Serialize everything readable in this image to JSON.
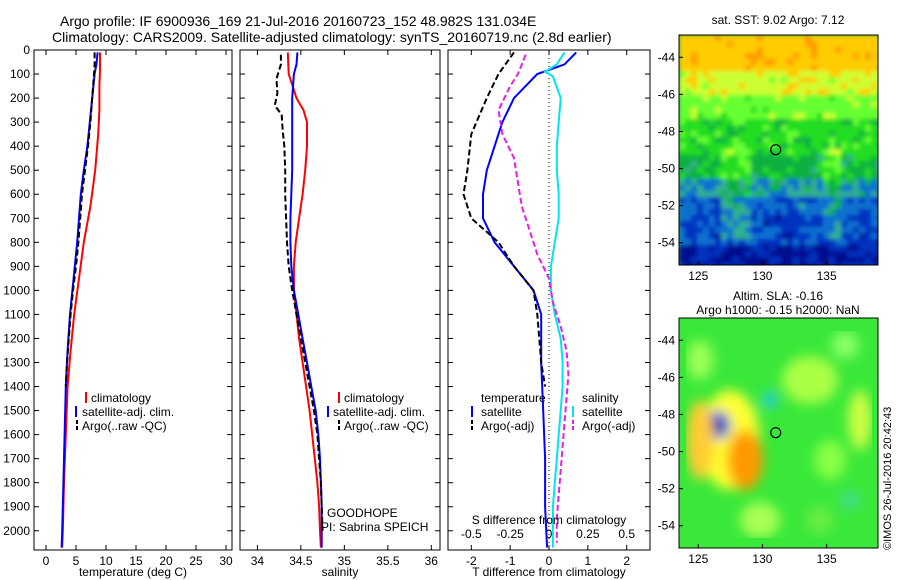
{
  "title_line1": "Argo profile: IF 6900936_169 21-Jul-2016 20160723_152 48.982S 131.034E",
  "title_line2": "Climatology: CARS2009. Satellite-adjusted climatology: synTS_20160719.nc (2.8d earlier)",
  "colors": {
    "climatology": "#ff0000",
    "satellite": "#0000ff",
    "argo": "#000000",
    "sat_salinity": "#00e5ee",
    "argo_salinity_adj": "#e61ee6"
  },
  "chart_data": [
    {
      "type": "line",
      "xlabel": "temperature (deg C)",
      "xlim": [
        -2,
        31
      ],
      "xticks": [
        0,
        5,
        10,
        15,
        20,
        25,
        30
      ],
      "ylim": [
        2080,
        0
      ],
      "yticks": [
        0,
        100,
        200,
        300,
        400,
        500,
        600,
        700,
        800,
        900,
        1000,
        1100,
        1200,
        1300,
        1400,
        1500,
        1600,
        1700,
        1800,
        1900,
        2000
      ],
      "legend": [
        "climatology",
        "satellite-adj. clim.",
        "Argo(..raw -QC)"
      ],
      "series": [
        {
          "name": "climatology",
          "style": "solid",
          "color": "#ff0000",
          "points": [
            [
              9.0,
              10
            ],
            [
              9.0,
              80
            ],
            [
              8.9,
              150
            ],
            [
              8.9,
              250
            ],
            [
              8.7,
              350
            ],
            [
              8.2,
              500
            ],
            [
              7.4,
              650
            ],
            [
              6.3,
              800
            ],
            [
              5.5,
              950
            ],
            [
              4.7,
              1100
            ],
            [
              4.1,
              1250
            ],
            [
              3.6,
              1400
            ],
            [
              3.3,
              1600
            ],
            [
              3.0,
              1800
            ],
            [
              2.8,
              2000
            ],
            [
              2.7,
              2070
            ]
          ]
        },
        {
          "name": "satellite-adj. clim.",
          "style": "solid",
          "color": "#0000ff",
          "points": [
            [
              8.6,
              10
            ],
            [
              8.4,
              60
            ],
            [
              8.1,
              100
            ],
            [
              7.7,
              200
            ],
            [
              7.3,
              300
            ],
            [
              6.9,
              400
            ],
            [
              6.3,
              500
            ],
            [
              5.8,
              600
            ],
            [
              5.5,
              700
            ],
            [
              5.2,
              800
            ],
            [
              4.8,
              900
            ],
            [
              4.4,
              1000
            ],
            [
              4.0,
              1100
            ],
            [
              3.6,
              1250
            ],
            [
              3.3,
              1400
            ],
            [
              3.1,
              1600
            ],
            [
              2.9,
              1800
            ],
            [
              2.7,
              2000
            ],
            [
              2.6,
              2070
            ]
          ]
        },
        {
          "name": "Argo(..raw -QC)",
          "style": "dashed",
          "color": "#000000",
          "points": [
            [
              8.1,
              10
            ],
            [
              8.1,
              60
            ],
            [
              8.0,
              100
            ],
            [
              7.7,
              200
            ],
            [
              7.4,
              300
            ],
            [
              7.0,
              400
            ],
            [
              6.5,
              500
            ],
            [
              6.0,
              600
            ],
            [
              5.7,
              700
            ],
            [
              5.4,
              800
            ],
            [
              5.0,
              900
            ],
            [
              4.5,
              1000
            ],
            [
              4.1,
              1100
            ],
            [
              3.8,
              1200
            ],
            [
              3.5,
              1300
            ],
            [
              3.3,
              1400
            ]
          ]
        }
      ]
    },
    {
      "type": "line",
      "xlabel": "salinity",
      "xlim": [
        33.8,
        36.1
      ],
      "xticks": [
        34,
        34.5,
        35,
        35.5,
        36
      ],
      "ylim": [
        2080,
        0
      ],
      "legend": [
        "climatology",
        "satellite-adj. clim.",
        "Argo(..raw -QC)"
      ],
      "annotation": [
        "GOODHOPE",
        "PI: Sabrina SPEICH"
      ],
      "series": [
        {
          "name": "climatology",
          "style": "solid",
          "color": "#ff0000",
          "points": [
            [
              34.35,
              10
            ],
            [
              34.36,
              100
            ],
            [
              34.45,
              200
            ],
            [
              34.53,
              250
            ],
            [
              34.57,
              300
            ],
            [
              34.57,
              400
            ],
            [
              34.55,
              500
            ],
            [
              34.52,
              600
            ],
            [
              34.48,
              700
            ],
            [
              34.44,
              800
            ],
            [
              34.42,
              900
            ],
            [
              34.42,
              1000
            ],
            [
              34.45,
              1100
            ],
            [
              34.48,
              1200
            ],
            [
              34.52,
              1300
            ],
            [
              34.56,
              1400
            ],
            [
              34.6,
              1500
            ],
            [
              34.63,
              1600
            ],
            [
              34.66,
              1700
            ],
            [
              34.69,
              1800
            ],
            [
              34.71,
              1900
            ],
            [
              34.72,
              2000
            ],
            [
              34.73,
              2070
            ]
          ]
        },
        {
          "name": "satellite-adj. clim.",
          "style": "solid",
          "color": "#0000ff",
          "points": [
            [
              34.46,
              10
            ],
            [
              34.45,
              60
            ],
            [
              34.42,
              100
            ],
            [
              34.4,
              200
            ],
            [
              34.4,
              300
            ],
            [
              34.4,
              400
            ],
            [
              34.4,
              500
            ],
            [
              34.39,
              600
            ],
            [
              34.38,
              700
            ],
            [
              34.38,
              800
            ],
            [
              34.39,
              900
            ],
            [
              34.42,
              1000
            ],
            [
              34.47,
              1100
            ],
            [
              34.52,
              1200
            ],
            [
              34.57,
              1300
            ],
            [
              34.62,
              1400
            ],
            [
              34.67,
              1500
            ],
            [
              34.7,
              1600
            ],
            [
              34.72,
              1700
            ],
            [
              34.73,
              1800
            ],
            [
              34.74,
              1900
            ],
            [
              34.74,
              2000
            ],
            [
              34.74,
              2070
            ]
          ]
        },
        {
          "name": "Argo(..raw -QC)",
          "style": "dashed",
          "color": "#000000",
          "points": [
            [
              34.27,
              20
            ],
            [
              34.27,
              60
            ],
            [
              34.22,
              120
            ],
            [
              34.23,
              180
            ],
            [
              34.2,
              230
            ],
            [
              34.28,
              270
            ],
            [
              34.29,
              330
            ],
            [
              34.31,
              400
            ],
            [
              34.32,
              500
            ],
            [
              34.32,
              600
            ],
            [
              34.33,
              700
            ],
            [
              34.34,
              800
            ],
            [
              34.36,
              900
            ],
            [
              34.4,
              1000
            ],
            [
              34.45,
              1100
            ],
            [
              34.5,
              1200
            ],
            [
              34.55,
              1300
            ],
            [
              34.6,
              1400
            ],
            [
              34.65,
              1500
            ],
            [
              34.69,
              1600
            ],
            [
              34.71,
              1700
            ],
            [
              34.73,
              1800
            ],
            [
              34.74,
              1900
            ],
            [
              34.75,
              2000
            ]
          ]
        }
      ]
    },
    {
      "type": "line",
      "xlabel": "T difference from climatology",
      "xlim": [
        -2.6,
        2.6
      ],
      "xticks": [
        -2,
        -1,
        0,
        1,
        2
      ],
      "x2label": "S difference from climatology",
      "x2ticks": [
        "-0.5",
        "-0.25",
        "0",
        "0.25",
        "0.5"
      ],
      "ylim": [
        2080,
        0
      ],
      "legend_temperature": {
        "heading": "temperature",
        "entries": [
          "satellite",
          "Argo(-adj)"
        ]
      },
      "legend_salinity": {
        "heading": "salinity",
        "entries": [
          "satellite",
          "Argo(-adj)"
        ]
      },
      "series": [
        {
          "name": "temperature satellite",
          "style": "solid",
          "color": "#0000ff",
          "points": [
            [
              0.7,
              10
            ],
            [
              0.4,
              60
            ],
            [
              -0.3,
              100
            ],
            [
              -0.9,
              200
            ],
            [
              -1.2,
              300
            ],
            [
              -1.4,
              400
            ],
            [
              -1.6,
              500
            ],
            [
              -1.7,
              600
            ],
            [
              -1.7,
              700
            ],
            [
              -1.4,
              800
            ],
            [
              -0.9,
              900
            ],
            [
              -0.4,
              1000
            ],
            [
              -0.2,
              1100
            ],
            [
              -0.2,
              1300
            ],
            [
              -0.15,
              1500
            ],
            [
              -0.1,
              1700
            ],
            [
              -0.1,
              1900
            ],
            [
              -0.05,
              2070
            ]
          ]
        },
        {
          "name": "temperature Argo(-adj)",
          "style": "dashed",
          "color": "#000000",
          "points": [
            [
              -0.9,
              10
            ],
            [
              -1.3,
              100
            ],
            [
              -1.6,
              200
            ],
            [
              -2.0,
              350
            ],
            [
              -2.1,
              500
            ],
            [
              -2.2,
              600
            ],
            [
              -2.0,
              700
            ],
            [
              -1.3,
              800
            ],
            [
              -0.9,
              900
            ],
            [
              -0.4,
              1000
            ],
            [
              -0.3,
              1100
            ],
            [
              -0.25,
              1200
            ],
            [
              -0.2,
              1300
            ],
            [
              -0.1,
              1400
            ]
          ]
        },
        {
          "name": "salinity satellite",
          "style": "solid",
          "color": "#00e5ee",
          "points": [
            [
              0.4,
              10
            ],
            [
              0.2,
              60
            ],
            [
              -0.1,
              90
            ],
            [
              0.1,
              110
            ],
            [
              0.3,
              200
            ],
            [
              0.25,
              300
            ],
            [
              0.2,
              400
            ],
            [
              0.2,
              500
            ],
            [
              0.25,
              600
            ],
            [
              0.25,
              700
            ],
            [
              0.15,
              800
            ],
            [
              0.05,
              900
            ],
            [
              0.05,
              1000
            ],
            [
              0.15,
              1100
            ],
            [
              0.3,
              1200
            ],
            [
              0.35,
              1300
            ],
            [
              0.35,
              1400
            ],
            [
              0.3,
              1500
            ],
            [
              0.25,
              1600
            ],
            [
              0.2,
              1700
            ],
            [
              0.15,
              1800
            ],
            [
              0.1,
              1900
            ],
            [
              0.1,
              2000
            ],
            [
              0.1,
              2070
            ]
          ]
        },
        {
          "name": "salinity Argo(-adj)",
          "style": "dashed",
          "color": "#e61ee6",
          "points": [
            [
              -0.6,
              20
            ],
            [
              -0.8,
              100
            ],
            [
              -1.0,
              150
            ],
            [
              -1.3,
              250
            ],
            [
              -1.2,
              350
            ],
            [
              -0.9,
              450
            ],
            [
              -0.8,
              550
            ],
            [
              -0.7,
              650
            ],
            [
              -0.5,
              750
            ],
            [
              -0.3,
              850
            ],
            [
              0.0,
              950
            ],
            [
              0.1,
              1050
            ],
            [
              0.3,
              1150
            ],
            [
              0.45,
              1250
            ],
            [
              0.5,
              1350
            ],
            [
              0.45,
              1450
            ],
            [
              0.4,
              1550
            ],
            [
              0.35,
              1650
            ],
            [
              0.3,
              1750
            ],
            [
              0.25,
              1850
            ],
            [
              0.2,
              1950
            ],
            [
              0.2,
              2050
            ]
          ]
        }
      ]
    },
    {
      "type": "heatmap",
      "title": "sat. SST: 9.02 Argo: 7.12",
      "xlim": [
        123.5,
        139
      ],
      "xticks": [
        125,
        130,
        135
      ],
      "ylim": [
        -55.2,
        -42.8
      ],
      "yticks": [
        -44,
        -46,
        -48,
        -50,
        -52,
        -54
      ],
      "marker": [
        131.034,
        -48.982
      ]
    },
    {
      "type": "heatmap",
      "title": "Altim. SLA: -0.16",
      "subtitle": "Argo h1000: -0.15 h2000: NaN",
      "xlim": [
        123.5,
        139
      ],
      "xticks": [
        125,
        130,
        135
      ],
      "ylim": [
        -55.2,
        -42.8
      ],
      "yticks": [
        -44,
        -46,
        -48,
        -50,
        -52,
        -54
      ],
      "marker": [
        131.034,
        -48.982
      ]
    }
  ],
  "credit": "©IMOS 26-Jul-2016 20:42:43"
}
